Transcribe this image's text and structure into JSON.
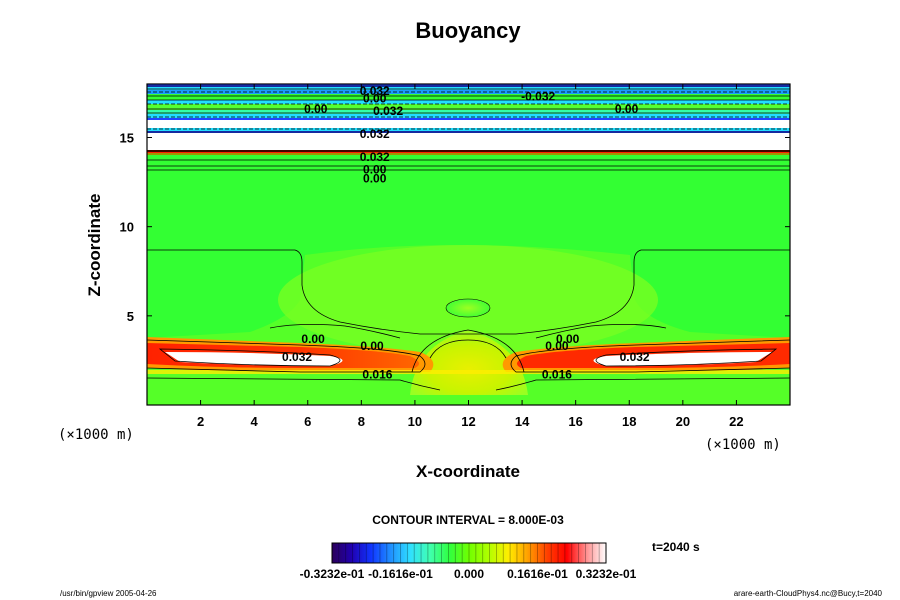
{
  "chart_data": {
    "type": "contour",
    "title": "Buoyancy",
    "xlabel": "X-coordinate",
    "ylabel": "Z-coordinate",
    "x_unit_label": "(×1000 m)",
    "y_unit_label": "(×1000 m)",
    "xlim": [
      0,
      24
    ],
    "ylim": [
      0,
      18
    ],
    "x_ticks": [
      "2",
      "4",
      "6",
      "8",
      "10",
      "12",
      "14",
      "16",
      "18",
      "20",
      "22"
    ],
    "y_ticks": [
      "5",
      "10",
      "15"
    ],
    "contour_labels": [
      {
        "text": "0.032",
        "x": 8.5,
        "z": 17.6
      },
      {
        "text": "0.00",
        "x": 8.5,
        "z": 17.2
      },
      {
        "text": "0.032",
        "x": 9.0,
        "z": 16.5
      },
      {
        "text": "0.00",
        "x": 6.3,
        "z": 16.6
      },
      {
        "text": "-0.032",
        "x": 14.6,
        "z": 17.3
      },
      {
        "text": "0.00",
        "x": 17.9,
        "z": 16.6
      },
      {
        "text": "0.032",
        "x": 8.5,
        "z": 15.2
      },
      {
        "text": "0.032",
        "x": 8.5,
        "z": 13.9
      },
      {
        "text": "0.00",
        "x": 8.5,
        "z": 13.2
      },
      {
        "text": "0.00",
        "x": 8.5,
        "z": 12.7
      },
      {
        "text": "0.00",
        "x": 6.2,
        "z": 3.7
      },
      {
        "text": "0.00",
        "x": 8.4,
        "z": 3.3
      },
      {
        "text": "0.032",
        "x": 5.6,
        "z": 2.7
      },
      {
        "text": "0.016",
        "x": 8.6,
        "z": 1.7
      },
      {
        "text": "0.00",
        "x": 15.7,
        "z": 3.7
      },
      {
        "text": "0.00",
        "x": 15.3,
        "z": 3.3
      },
      {
        "text": "0.032",
        "x": 18.2,
        "z": 2.7
      },
      {
        "text": "0.016",
        "x": 15.3,
        "z": 1.7
      }
    ],
    "contour_interval_text": "CONTOUR INTERVAL = 8.000E-03",
    "time_text": "t=2040 s",
    "colorbar": {
      "min": -0.03232,
      "max": 0.03232,
      "tick_labels": [
        "-0.3232e-01",
        "-0.1616e-01",
        "0.000",
        "0.1616e-01",
        "0.3232e-01"
      ],
      "colors": [
        "#2b005a",
        "#2000b0",
        "#1035ff",
        "#2090ff",
        "#30e0ff",
        "#40ffb0",
        "#30ff40",
        "#70ff00",
        "#b0ff00",
        "#ffee00",
        "#ffa000",
        "#ff4000",
        "#ff0000",
        "#ff9090",
        "#ffffff"
      ]
    },
    "field_colors": {
      "background": "#33ff33",
      "mid_band": "#66ff22",
      "upper_lobe": "#99ff22",
      "core": "#ccf000",
      "core_center": "#e8f000",
      "white_band": "#ffffff",
      "red_band": "#ff2200",
      "orange_band": "#ff9900",
      "yellow_band": "#ffee00",
      "cyan_band": "#22ddff",
      "blue_band": "#2244ff"
    },
    "grid": false
  },
  "footer": {
    "left": "/usr/bin/gpview 2005-04-26",
    "right": "arare-earth-CloudPhys4.nc@Bucy,t=2040"
  }
}
